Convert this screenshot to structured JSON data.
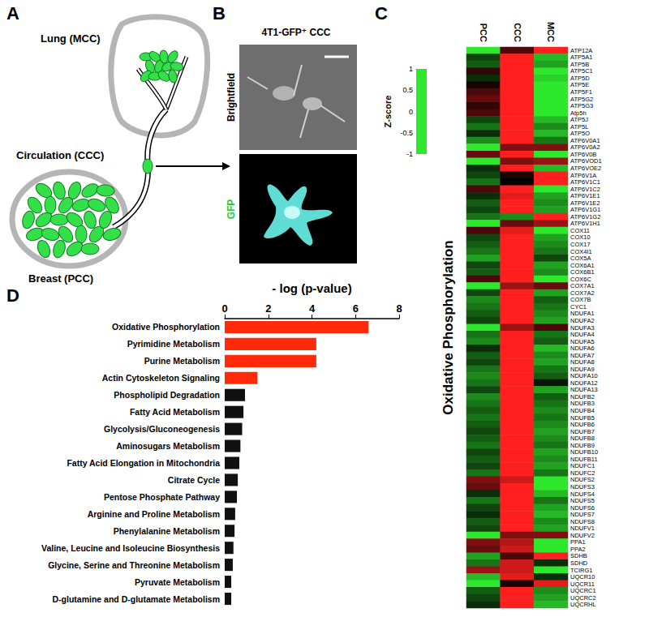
{
  "diagram": {
    "label": "A",
    "sites": [
      "Lung (MCC)",
      "Circulation (CCC)",
      "Breast (PCC)"
    ]
  },
  "image_panel": {
    "label": "B",
    "title": "4T1-GFP⁺ CCC",
    "channels": [
      "Brightfield",
      "GFP"
    ]
  },
  "chart_data": [
    {
      "type": "heatmap",
      "annotations": [
        "C"
      ],
      "ylabel": "Oxidative Phosphorylation",
      "x": [
        "PCC",
        "CCC",
        "MCC"
      ],
      "y": [
        "ATP12A",
        "ATP5A1",
        "ATP5B",
        "ATP5C1",
        "ATP5D",
        "ATP5E",
        "ATP5F1",
        "ATP5G2",
        "ATP5G3",
        "Atp5h",
        "ATP5J",
        "ATP5L",
        "ATP5O",
        "ATP6V0A1",
        "ATP6V0A2",
        "ATP6V0B",
        "ATP6VOD1",
        "ATP6VOE2",
        "ATP6V1A",
        "ATP6V1C1",
        "ATP6V1C2",
        "ATP6V1E1",
        "ATP6V1E2",
        "ATP6V1G1",
        "ATP6V1G2",
        "ATP6V1H1",
        "COX11",
        "COX10",
        "COX17",
        "COX4I1",
        "COX5A",
        "COX6A1",
        "COX6B1",
        "COX6C",
        "COX7A1",
        "COX7A2",
        "COX7B",
        "CYC1",
        "NDUFA1",
        "NDUFA2",
        "NDUFA3",
        "NDUFA4",
        "NDUFA5",
        "NDUFA6",
        "NDUFA7",
        "NDUFA8",
        "NDUFA9",
        "NDUFA10",
        "NDUFA12",
        "NDUFA13",
        "NDUFB2",
        "NDUFB3",
        "NDUFB4",
        "NDUFB5",
        "NDUFB6",
        "NDUFB7",
        "NDUFB8",
        "NDUFB9",
        "NDUFB10",
        "NDUFB11",
        "NDUFC1",
        "NDUFC2",
        "NDUFS2",
        "NDUFS3",
        "NDUFS4",
        "NDUFS5",
        "NDUFS6",
        "NDUFS7",
        "NDUFS8",
        "NDUFV1",
        "NDUFV2",
        "PPA1",
        "PPA2",
        "SDHB",
        "SDHD",
        "TCIRG1",
        "UQCR10",
        "UQCR11",
        "UQCRC1",
        "UQCRC2",
        "UQCRHL"
      ],
      "values": [
        [
          -1,
          0.3,
          1
        ],
        [
          -0.3,
          1,
          -0.8
        ],
        [
          -0.4,
          1,
          -0.7
        ],
        [
          0.2,
          1,
          -1
        ],
        [
          -0.2,
          1,
          -0.9
        ],
        [
          0.1,
          1,
          -1
        ],
        [
          0.3,
          1,
          -1
        ],
        [
          0.4,
          1,
          -1
        ],
        [
          0.2,
          1,
          -1
        ],
        [
          0.3,
          1,
          -1
        ],
        [
          -0.3,
          1,
          -0.8
        ],
        [
          -0.5,
          1,
          -0.6
        ],
        [
          -0.2,
          1,
          -0.8
        ],
        [
          -0.6,
          1,
          -0.5
        ],
        [
          -1,
          0.5,
          0.5
        ],
        [
          0.4,
          1,
          -1
        ],
        [
          -1,
          0.5,
          0.6
        ],
        [
          -0.2,
          1,
          -0.8
        ],
        [
          -0.3,
          0.1,
          1
        ],
        [
          -0.5,
          0,
          1
        ],
        [
          0.3,
          1,
          -1
        ],
        [
          -0.2,
          0.9,
          -0.7
        ],
        [
          -0.4,
          1,
          -0.6
        ],
        [
          -0.3,
          1,
          -0.7
        ],
        [
          -0.5,
          -0.6,
          1
        ],
        [
          -1,
          0.4,
          0.6
        ],
        [
          0.3,
          0.9,
          -1
        ],
        [
          -0.3,
          1,
          -0.7
        ],
        [
          -0.4,
          1,
          -0.6
        ],
        [
          -0.5,
          1,
          -0.5
        ],
        [
          -0.7,
          1,
          -0.3
        ],
        [
          -0.3,
          1,
          -0.7
        ],
        [
          -0.4,
          1,
          -0.6
        ],
        [
          0.3,
          1,
          -1
        ],
        [
          -1,
          0.6,
          0.4
        ],
        [
          -0.3,
          1,
          -0.7
        ],
        [
          -0.6,
          1,
          -0.4
        ],
        [
          -0.5,
          1,
          -0.5
        ],
        [
          -0.4,
          1,
          -0.6
        ],
        [
          -0.3,
          1,
          -0.7
        ],
        [
          -1,
          0.6,
          0.3
        ],
        [
          -0.5,
          1,
          -0.5
        ],
        [
          -0.6,
          1,
          -0.4
        ],
        [
          -0.2,
          1,
          -0.8
        ],
        [
          -0.4,
          1,
          -0.6
        ],
        [
          -0.3,
          1,
          -0.7
        ],
        [
          -0.5,
          1,
          -0.5
        ],
        [
          -0.6,
          1,
          -0.4
        ],
        [
          -0.5,
          1,
          -0.1
        ],
        [
          -0.3,
          1,
          -0.7
        ],
        [
          -0.6,
          1,
          -0.4
        ],
        [
          -0.5,
          1,
          -0.5
        ],
        [
          -0.4,
          1,
          -0.6
        ],
        [
          -0.5,
          1,
          -0.5
        ],
        [
          -0.4,
          1,
          -0.6
        ],
        [
          -0.3,
          1,
          -0.7
        ],
        [
          -0.4,
          1,
          -0.6
        ],
        [
          -0.5,
          1,
          -0.5
        ],
        [
          -0.3,
          1,
          -0.7
        ],
        [
          -0.4,
          1,
          -0.6
        ],
        [
          -0.3,
          1,
          -0.7
        ],
        [
          -0.5,
          1,
          -0.5
        ],
        [
          0.5,
          0.8,
          -1
        ],
        [
          0.4,
          1,
          -1
        ],
        [
          -0.2,
          1,
          -0.8
        ],
        [
          -0.5,
          1,
          -0.5
        ],
        [
          -0.3,
          1,
          -0.7
        ],
        [
          -0.2,
          1,
          -0.8
        ],
        [
          -0.4,
          1,
          -0.6
        ],
        [
          -0.3,
          1,
          -0.7
        ],
        [
          -1,
          0.5,
          0.5
        ],
        [
          0.5,
          0.7,
          -1
        ],
        [
          0.4,
          0.8,
          -1
        ],
        [
          -0.7,
          0.3,
          1
        ],
        [
          -0.5,
          0.8,
          -0.2
        ],
        [
          0.6,
          0.8,
          -1
        ],
        [
          -0.8,
          0.9,
          -0.2
        ],
        [
          -1,
          0.1,
          0.9
        ],
        [
          -0.4,
          1,
          -0.6
        ],
        [
          -0.3,
          1,
          -0.7
        ],
        [
          -0.2,
          1,
          -0.8
        ]
      ],
      "colorbar": {
        "title": "Z-score",
        "range": [
          -1,
          1
        ],
        "ticks": [
          -1,
          -0.5,
          0,
          0.5,
          1
        ],
        "colors": [
          "#2ee82e",
          "#000000",
          "#ff1f1f"
        ]
      }
    },
    {
      "type": "bar",
      "annotations": [
        "D"
      ],
      "orientation": "horizontal",
      "title": "- log (p-value)",
      "categories": [
        "Oxidative Phosphorylation",
        "Pyrimidine Metabolism",
        "Purine Metabolism",
        "Actin Cytoskeleton Signaling",
        "Phospholipid Degradation",
        "Fatty Acid Metabolism",
        "Glycolysis/Gluconeogenesis",
        "Aminosugars Metabolism",
        "Fatty Acid Elongation in Mitochondria",
        "Citrate Cycle",
        "Pentose Phosphate Pathway",
        "Arginine and Proline Metabolism",
        "Phenylalanine Metabolism",
        "Valine, Leucine and Isoleucine Biosynthesis",
        "Glycine, Serine and Threonine Metabolism",
        "Pyruvate Metabolism",
        "D-glutamine and D-glutamate Metabolism"
      ],
      "values": [
        6.6,
        4.2,
        4.2,
        1.5,
        0.93,
        0.86,
        0.8,
        0.72,
        0.67,
        0.6,
        0.56,
        0.48,
        0.45,
        0.4,
        0.37,
        0.3,
        0.3
      ],
      "colors": [
        "#ff2a0a",
        "#ff2a0a",
        "#ff2a0a",
        "#ff2a0a",
        "#111111",
        "#111111",
        "#111111",
        "#111111",
        "#111111",
        "#111111",
        "#111111",
        "#111111",
        "#111111",
        "#111111",
        "#111111",
        "#111111",
        "#111111"
      ],
      "xlim": [
        0,
        8
      ],
      "xticks": [
        0,
        2,
        4,
        6,
        8
      ],
      "grid": false
    }
  ]
}
